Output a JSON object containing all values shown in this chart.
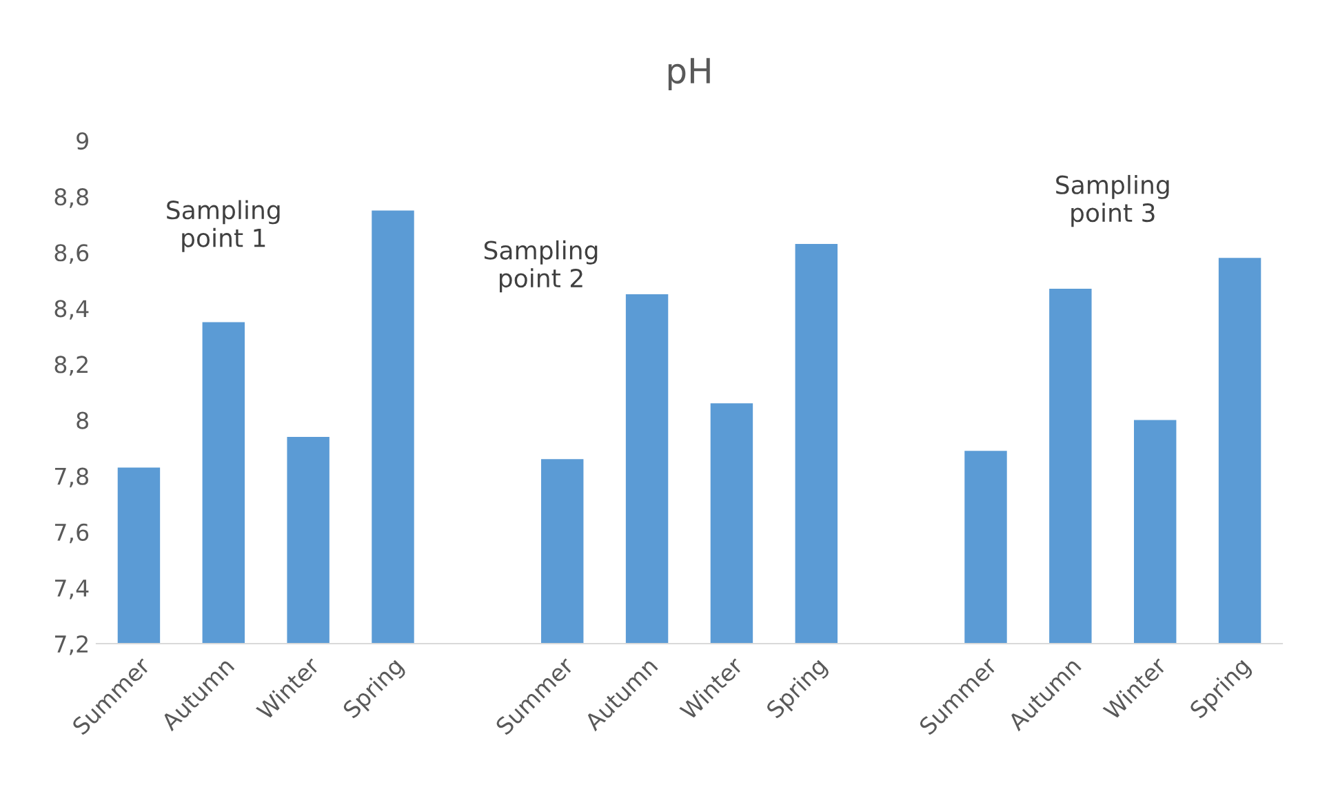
{
  "chart_data": {
    "type": "bar",
    "title": "pH",
    "categories": [
      "Summer",
      "Autumn",
      "Winter",
      "Spring",
      null,
      "Summer",
      "Autumn",
      "Winter",
      "Spring",
      null,
      "Summer",
      "Autumn",
      "Winter",
      "Spring"
    ],
    "values": [
      7.83,
      8.35,
      7.94,
      8.75,
      null,
      7.86,
      8.45,
      8.06,
      8.63,
      null,
      7.89,
      8.47,
      8.0,
      8.58
    ],
    "color": "#5b9bd5",
    "ylim": [
      7.2,
      9
    ],
    "yticks": [
      {
        "value": 7.2,
        "label": "7,2"
      },
      {
        "value": 7.4,
        "label": "7,4"
      },
      {
        "value": 7.6,
        "label": "7,6"
      },
      {
        "value": 7.8,
        "label": "7,8"
      },
      8,
      {
        "value": 8.2,
        "label": "8,2"
      },
      {
        "value": 8.4,
        "label": "8,4"
      },
      {
        "value": 8.6,
        "label": "8,6"
      },
      {
        "value": 8.8,
        "label": "8,8"
      },
      9
    ],
    "annotations": [
      "Sampling\npoint 1",
      "Sampling\npoint 2",
      "Sampling\npoint 3"
    ],
    "grid": false,
    "legend": false
  }
}
